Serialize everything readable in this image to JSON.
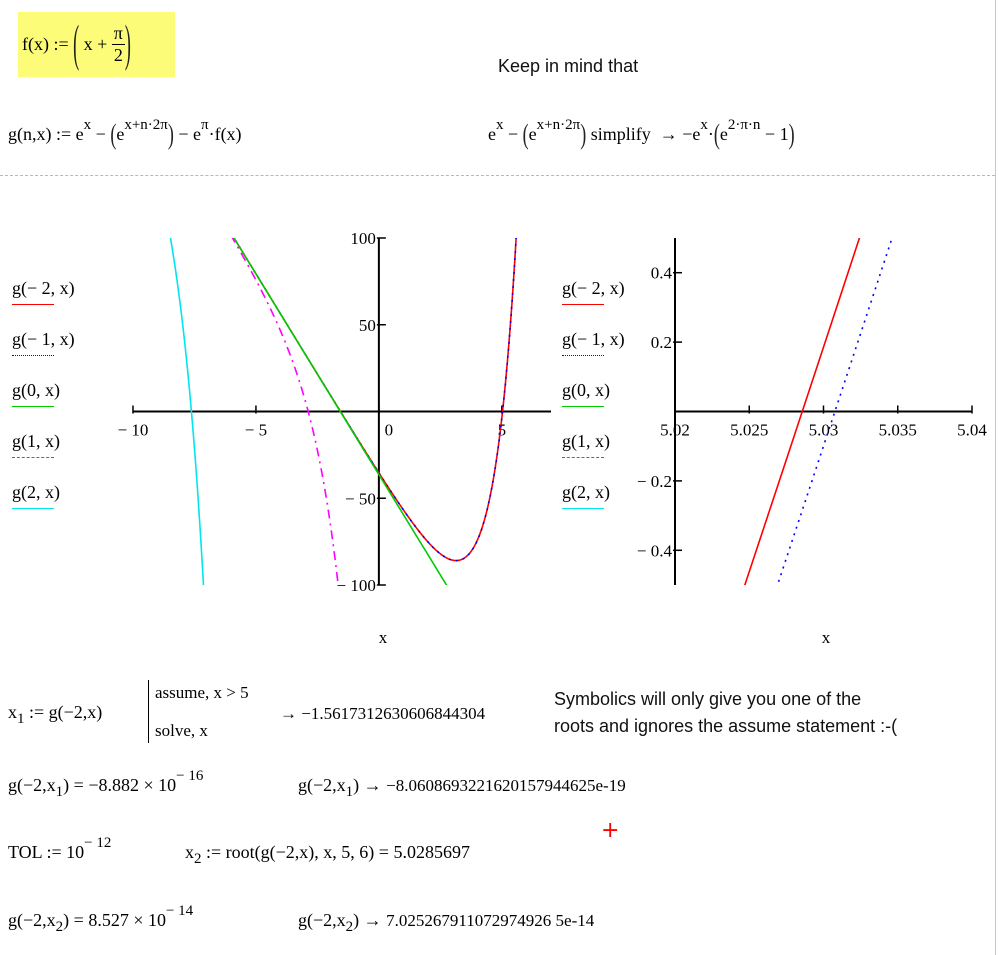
{
  "worksheet": {
    "f_def": {
      "lhs": "f(x)",
      "assign": ":=",
      "body_a": "x +",
      "num": "π",
      "den": "2"
    },
    "note": "Keep in mind that",
    "g_def": {
      "lhs": "g(n,x)",
      "assign": ":=",
      "e": "e",
      "exp1": "x",
      "minus": "−",
      "exp2": "x+n·2π",
      "exp3": "π",
      "tail": "·f(x)"
    },
    "simplify": {
      "e": "e",
      "exp1": "x",
      "minus": "−",
      "exp2": "x+n·2π",
      "keyword": "simplify",
      "arrow": "→",
      "res_a": "−e",
      "res_exp1": "x",
      "res_dot": "·",
      "res_exp2": "2·π·n",
      "res_tail": "− 1"
    },
    "solve": {
      "lhs": "x",
      "lhs_sub": "1",
      "assign": ":=",
      "expr": "g(−2,x)",
      "kw1": "assume, x > 5",
      "kw2": "solve, x",
      "arrow": "→",
      "result": "−1.5617312630606844304"
    },
    "comment_line1": "Symbolics will only give you one of the",
    "comment_line2": "roots and ignores the assume statement :-(",
    "eval1": {
      "lhs": "g(−2,x",
      "sub": "1",
      "rhs_close": ")",
      "eq": "=",
      "mant": "−8.882 × 10",
      "exp": "− 16"
    },
    "sym1": {
      "lhs": "g(−2,x",
      "sub": "1",
      "close": ")",
      "arrow": "→",
      "result": "−8.0608693221620157944625e-19"
    },
    "tol": {
      "lhs": "TOL",
      "assign": ":=",
      "base": "10",
      "exp": "− 12"
    },
    "root": {
      "lhs": "x",
      "sub": "2",
      "assign": ":=",
      "expr": "root(g(−2,x), x, 5, 6)",
      "eq": "=",
      "value": "5.0285697"
    },
    "eval2": {
      "lhs": "g(−2,x",
      "sub": "2",
      "rhs_close": ")",
      "eq": "=",
      "mant": "8.527 × 10",
      "exp": "− 14"
    },
    "sym2": {
      "lhs": "g(−2,x",
      "sub": "2",
      "close": ")",
      "arrow": "→",
      "result": "7.025267911072974926 5e-14"
    },
    "cursor_color": "#ff0000",
    "highlight_color": "#fcfc78"
  },
  "legend": [
    {
      "label": "g(− 2, x)",
      "n": -2,
      "color": "#ff0000",
      "style": "solid"
    },
    {
      "label": "g(− 1, x)",
      "n": -1,
      "color": "#0000ff",
      "style": "dotted"
    },
    {
      "label": "g(0, x)",
      "n": 0,
      "color": "#00cc00",
      "style": "solid"
    },
    {
      "label": "g(1, x)",
      "n": 1,
      "color": "#ff00ff",
      "style": "dash-dot"
    },
    {
      "label": "g(2, x)",
      "n": 2,
      "color": "#00e5ee",
      "style": "solid"
    }
  ],
  "chart_data": [
    {
      "type": "line",
      "function": "g(n,x) = e^x − e^(x+n·2π) − e^π·(x+π/2)",
      "series": [
        {
          "label": "g(− 2, x)",
          "n": -2
        },
        {
          "label": "g(− 1, x)",
          "n": -1
        },
        {
          "label": "g(0, x)",
          "n": 0
        },
        {
          "label": "g(1, x)",
          "n": 1
        },
        {
          "label": "g(2, x)",
          "n": 2
        }
      ],
      "xlabel": "x",
      "xlim": [
        -10.5,
        7
      ],
      "ylim": [
        -100,
        100
      ],
      "xticks": [
        -10,
        -5,
        0,
        5
      ],
      "xtick_labels": [
        "− 10",
        "− 5",
        "0",
        "5"
      ],
      "yticks": [
        100,
        50,
        -50,
        -100
      ],
      "ytick_labels": [
        "100",
        "50",
        "− 50",
        "− 100"
      ],
      "grid": false,
      "legend_placement": "left"
    },
    {
      "type": "line",
      "function": "g(n,x) = e^x − e^(x+n·2π) − e^π·(x+π/2)",
      "series": [
        {
          "label": "g(− 2, x)",
          "n": -2
        },
        {
          "label": "g(− 1, x)",
          "n": -1
        },
        {
          "label": "g(0, x)",
          "n": 0
        },
        {
          "label": "g(1, x)",
          "n": 1
        },
        {
          "label": "g(2, x)",
          "n": 2
        }
      ],
      "xlabel": "x",
      "xlim": [
        5.02,
        5.04
      ],
      "ylim": [
        -0.5,
        0.5
      ],
      "xticks": [
        5.02,
        5.025,
        5.03,
        5.035,
        5.04
      ],
      "xtick_labels": [
        "5.02",
        "5.025",
        "5.03",
        "5.035",
        "5.04"
      ],
      "yticks": [
        0.4,
        0.2,
        -0.2,
        -0.4
      ],
      "ytick_labels": [
        "0.4",
        "0.2",
        "− 0.2",
        "− 0.4"
      ],
      "grid": false,
      "legend_placement": "left"
    }
  ]
}
